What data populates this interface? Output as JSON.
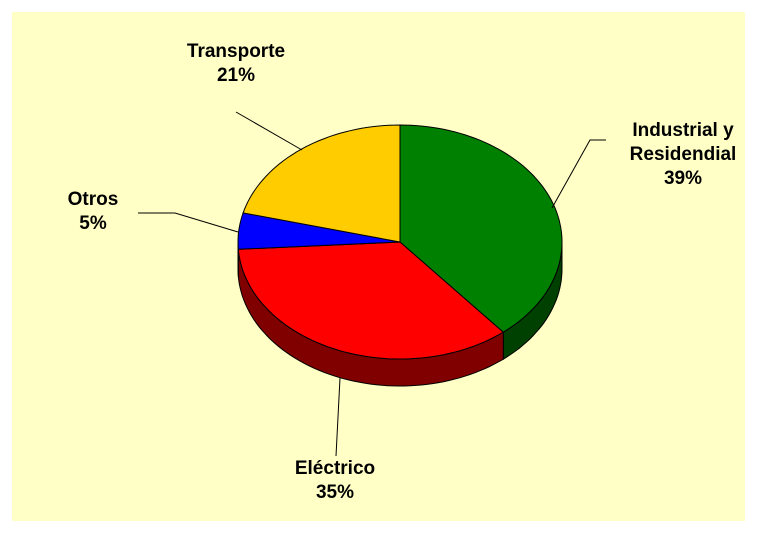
{
  "chart_data": {
    "type": "pie",
    "categories": [
      "Industrial y Residendial",
      "Eléctrico",
      "Otros",
      "Transporte"
    ],
    "values": [
      39,
      35,
      5,
      21
    ],
    "value_labels": [
      "39%",
      "35%",
      "5%",
      "21%"
    ],
    "colors": [
      "#008000",
      "#ff0000",
      "#0000ff",
      "#ffcc00"
    ]
  }
}
